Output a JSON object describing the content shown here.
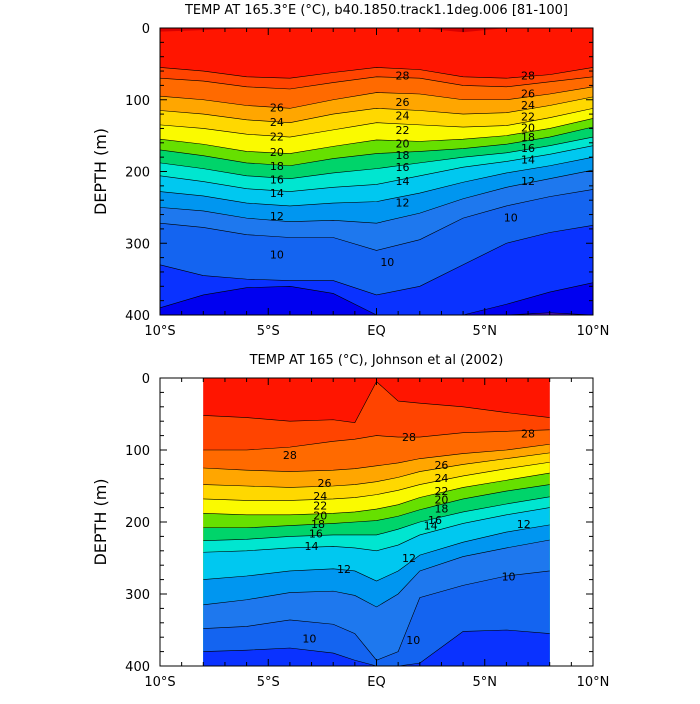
{
  "chart_data": [
    {
      "type": "contour",
      "title": "TEMP AT 165.3°E (°C), b40.1850.track1.1deg.006 [81-100]",
      "ylabel": "DEPTH (m)",
      "xlabel": "",
      "x_ticks": [
        "10°S",
        "5°S",
        "EQ",
        "5°N",
        "10°N"
      ],
      "x_tick_values": [
        -10,
        -5,
        0,
        5,
        10
      ],
      "y_ticks": [
        "0",
        "100",
        "200",
        "300",
        "400"
      ],
      "y_tick_values": [
        0,
        100,
        200,
        300,
        400
      ],
      "xlim": [
        -10,
        10
      ],
      "ylim": [
        0,
        400
      ],
      "y_reversed": true,
      "data_x_range": [
        -10,
        10
      ],
      "contour_interval": 1,
      "x_samples": [
        -10,
        -8,
        -6,
        -4,
        -2,
        0,
        2,
        4,
        6,
        8,
        10
      ],
      "isotherm_depths": [
        {
          "temp": 30,
          "depth": [
            5,
            3,
            0,
            0,
            0,
            0,
            0,
            6,
            0,
            0,
            0
          ]
        },
        {
          "temp": 29,
          "depth": [
            55,
            60,
            68,
            70,
            62,
            55,
            58,
            68,
            70,
            65,
            55
          ]
        },
        {
          "temp": 28,
          "depth": [
            70,
            74,
            82,
            85,
            76,
            68,
            70,
            80,
            82,
            75,
            68
          ]
        },
        {
          "temp": 26,
          "depth": [
            95,
            100,
            108,
            112,
            100,
            90,
            92,
            100,
            100,
            92,
            82
          ]
        },
        {
          "temp": 24,
          "depth": [
            115,
            120,
            128,
            132,
            120,
            112,
            115,
            120,
            118,
            108,
            96
          ]
        },
        {
          "temp": 22,
          "depth": [
            135,
            140,
            148,
            152,
            142,
            132,
            135,
            138,
            136,
            125,
            112
          ]
        },
        {
          "temp": 20,
          "depth": [
            155,
            162,
            172,
            175,
            165,
            156,
            158,
            155,
            150,
            140,
            126
          ]
        },
        {
          "temp": 18,
          "depth": [
            170,
            178,
            188,
            192,
            182,
            175,
            172,
            168,
            162,
            152,
            138
          ]
        },
        {
          "temp": 16,
          "depth": [
            188,
            196,
            206,
            210,
            202,
            196,
            188,
            180,
            174,
            164,
            152
          ]
        },
        {
          "temp": 14,
          "depth": [
            206,
            214,
            224,
            228,
            222,
            218,
            206,
            194,
            186,
            176,
            164
          ]
        },
        {
          "temp": 12,
          "depth": [
            228,
            234,
            244,
            248,
            244,
            242,
            230,
            215,
            202,
            192,
            180
          ]
        },
        {
          "temp": 11,
          "depth": [
            250,
            255,
            265,
            270,
            268,
            272,
            258,
            238,
            222,
            210,
            198
          ]
        },
        {
          "temp": 10,
          "depth": [
            272,
            278,
            288,
            292,
            292,
            310,
            295,
            265,
            248,
            235,
            225
          ]
        },
        {
          "temp": 9,
          "depth": [
            330,
            345,
            350,
            352,
            352,
            372,
            360,
            330,
            300,
            285,
            275
          ]
        },
        {
          "temp": 8,
          "depth": [
            390,
            372,
            362,
            360,
            370,
            400,
            400,
            400,
            385,
            368,
            355
          ]
        },
        {
          "temp": 7,
          "depth": [
            400,
            400,
            400,
            400,
            400,
            400,
            400,
            400,
            400,
            397,
            400
          ]
        }
      ],
      "labels": [
        {
          "x": 1.2,
          "depth": 66,
          "text": "28"
        },
        {
          "x": 7,
          "depth": 66,
          "text": "28"
        },
        {
          "x": -4.6,
          "depth": 111,
          "text": "26"
        },
        {
          "x": 1.2,
          "depth": 103,
          "text": "26"
        },
        {
          "x": 7,
          "depth": 91,
          "text": "26"
        },
        {
          "x": -4.6,
          "depth": 131,
          "text": "24"
        },
        {
          "x": 1.2,
          "depth": 122,
          "text": "24"
        },
        {
          "x": 7,
          "depth": 107,
          "text": "24"
        },
        {
          "x": -4.6,
          "depth": 151,
          "text": "22"
        },
        {
          "x": 1.2,
          "depth": 142,
          "text": "22"
        },
        {
          "x": 7,
          "depth": 123,
          "text": "22"
        },
        {
          "x": -4.6,
          "depth": 173,
          "text": "20"
        },
        {
          "x": 1.2,
          "depth": 161,
          "text": "20"
        },
        {
          "x": 7,
          "depth": 139,
          "text": "20"
        },
        {
          "x": -4.6,
          "depth": 192,
          "text": "18"
        },
        {
          "x": 1.2,
          "depth": 177,
          "text": "18"
        },
        {
          "x": 7,
          "depth": 152,
          "text": "18"
        },
        {
          "x": -4.6,
          "depth": 211,
          "text": "16"
        },
        {
          "x": 1.2,
          "depth": 194,
          "text": "16"
        },
        {
          "x": 7,
          "depth": 167,
          "text": "16"
        },
        {
          "x": -4.6,
          "depth": 230,
          "text": "14"
        },
        {
          "x": 1.2,
          "depth": 213,
          "text": "14"
        },
        {
          "x": 7,
          "depth": 183,
          "text": "14"
        },
        {
          "x": -4.6,
          "depth": 262,
          "text": "12"
        },
        {
          "x": 1.2,
          "depth": 243,
          "text": "12"
        },
        {
          "x": 7,
          "depth": 213,
          "text": "12"
        },
        {
          "x": -4.6,
          "depth": 316,
          "text": "10"
        },
        {
          "x": 0.5,
          "depth": 326,
          "text": "10"
        },
        {
          "x": 6.2,
          "depth": 264,
          "text": "10"
        }
      ]
    },
    {
      "type": "contour",
      "title": "TEMP AT 165 (°C), Johnson et al (2002)",
      "ylabel": "DEPTH (m)",
      "xlabel": "",
      "x_ticks": [
        "10°S",
        "5°S",
        "EQ",
        "5°N",
        "10°N"
      ],
      "x_tick_values": [
        -10,
        -5,
        0,
        5,
        10
      ],
      "y_ticks": [
        "0",
        "100",
        "200",
        "300",
        "400"
      ],
      "y_tick_values": [
        0,
        100,
        200,
        300,
        400
      ],
      "xlim": [
        -10,
        10
      ],
      "ylim": [
        0,
        400
      ],
      "y_reversed": true,
      "data_x_range": [
        -8,
        8
      ],
      "contour_interval": 1,
      "x_samples": [
        -8,
        -6,
        -4,
        -2,
        -1,
        0,
        1,
        2,
        4,
        6,
        8
      ],
      "isotherm_depths": [
        {
          "temp": 30,
          "depth": [
            0,
            0,
            0,
            0,
            0,
            0,
            0,
            0,
            0,
            0,
            0
          ]
        },
        {
          "temp": 29,
          "depth": [
            52,
            55,
            60,
            58,
            62,
            5,
            32,
            35,
            40,
            48,
            55
          ]
        },
        {
          "temp": 28,
          "depth": [
            100,
            100,
            96,
            88,
            85,
            80,
            82,
            82,
            76,
            74,
            72
          ]
        },
        {
          "temp": 26,
          "depth": [
            125,
            128,
            130,
            128,
            126,
            122,
            118,
            112,
            105,
            100,
            92
          ]
        },
        {
          "temp": 24,
          "depth": [
            148,
            150,
            152,
            150,
            148,
            144,
            138,
            130,
            120,
            112,
            104
          ]
        },
        {
          "temp": 22,
          "depth": [
            168,
            170,
            170,
            168,
            166,
            162,
            156,
            148,
            136,
            126,
            117
          ]
        },
        {
          "temp": 20,
          "depth": [
            188,
            190,
            190,
            188,
            186,
            182,
            176,
            166,
            152,
            142,
            132
          ]
        },
        {
          "temp": 18,
          "depth": [
            208,
            208,
            205,
            202,
            200,
            198,
            192,
            183,
            168,
            157,
            148
          ]
        },
        {
          "temp": 16,
          "depth": [
            226,
            224,
            220,
            218,
            218,
            218,
            210,
            200,
            186,
            175,
            165
          ]
        },
        {
          "temp": 14,
          "depth": [
            242,
            240,
            236,
            234,
            236,
            240,
            232,
            218,
            202,
            190,
            180
          ]
        },
        {
          "temp": 12,
          "depth": [
            280,
            275,
            268,
            265,
            268,
            282,
            268,
            246,
            228,
            214,
            204
          ]
        },
        {
          "temp": 11,
          "depth": [
            315,
            308,
            298,
            296,
            302,
            318,
            300,
            268,
            248,
            236,
            225
          ]
        },
        {
          "temp": 10,
          "depth": [
            348,
            345,
            336,
            342,
            355,
            392,
            380,
            305,
            288,
            275,
            268
          ]
        },
        {
          "temp": 9,
          "depth": [
            380,
            378,
            375,
            382,
            392,
            400,
            400,
            396,
            352,
            350,
            355
          ]
        },
        {
          "temp": 8,
          "depth": [
            400,
            400,
            400,
            400,
            400,
            400,
            400,
            400,
            400,
            400,
            400
          ]
        }
      ],
      "labels": [
        {
          "x": 1.5,
          "depth": 82,
          "text": "28"
        },
        {
          "x": 7,
          "depth": 77,
          "text": "28"
        },
        {
          "x": -4,
          "depth": 107,
          "text": "28"
        },
        {
          "x": -2.4,
          "depth": 146,
          "text": "26"
        },
        {
          "x": 3,
          "depth": 121,
          "text": "26"
        },
        {
          "x": -2.6,
          "depth": 164,
          "text": "24"
        },
        {
          "x": 3,
          "depth": 139,
          "text": "24"
        },
        {
          "x": -2.6,
          "depth": 177,
          "text": "22"
        },
        {
          "x": 3,
          "depth": 157,
          "text": "22"
        },
        {
          "x": -2.6,
          "depth": 191,
          "text": "20"
        },
        {
          "x": 3,
          "depth": 169,
          "text": "20"
        },
        {
          "x": -2.7,
          "depth": 203,
          "text": "18"
        },
        {
          "x": 3,
          "depth": 181,
          "text": "18"
        },
        {
          "x": -2.8,
          "depth": 216,
          "text": "16"
        },
        {
          "x": 2.7,
          "depth": 197,
          "text": "16"
        },
        {
          "x": -3.0,
          "depth": 233,
          "text": "14"
        },
        {
          "x": 2.5,
          "depth": 205,
          "text": "14"
        },
        {
          "x": -1.5,
          "depth": 265,
          "text": "12"
        },
        {
          "x": 1.5,
          "depth": 250,
          "text": "12"
        },
        {
          "x": 6.8,
          "depth": 203,
          "text": "12"
        },
        {
          "x": 6.1,
          "depth": 276,
          "text": "10"
        },
        {
          "x": -3.1,
          "depth": 362,
          "text": "10"
        },
        {
          "x": 1.7,
          "depth": 364,
          "text": "10"
        }
      ]
    }
  ],
  "colors": {
    "palette_30": "#d90000",
    "palette_29": "#ff1500",
    "palette_28": "#ff4400",
    "palette_27": "#ff6a00",
    "palette_26": "#ff8c00",
    "palette_25": "#ffa600",
    "palette_24": "#ffc000",
    "palette_23": "#ffd800",
    "palette_22": "#ffee00",
    "palette_21": "#fafa00",
    "palette_20": "#ccf500",
    "palette_19": "#66e000",
    "palette_18": "#00d700",
    "palette_17": "#00d46a",
    "palette_16": "#00dca8",
    "palette_15": "#00e6d0",
    "palette_14": "#00ddee",
    "palette_13": "#00c8f0",
    "palette_12": "#00b4f0",
    "palette_11": "#0096f0",
    "palette_10": "#1e78ee",
    "palette_9": "#1464f0",
    "palette_8": "#0a32ff",
    "palette_7": "#0000f0",
    "palette_6": "#5a14d2"
  }
}
